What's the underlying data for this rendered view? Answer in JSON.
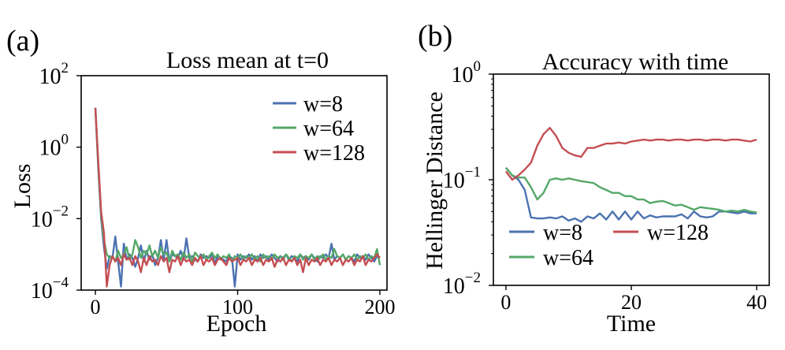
{
  "chart_data": [
    {
      "panel_label": "(a)",
      "type": "line",
      "title": "Loss mean at t=0",
      "xlabel": "Epoch",
      "ylabel": "Loss",
      "yscale": "log",
      "xlim": [
        -10,
        205
      ],
      "ylim_exp": [
        -4,
        2
      ],
      "xticks": [
        0,
        100,
        200
      ],
      "xtick_labels": [
        "0",
        "100",
        "200"
      ],
      "yticks_exp": [
        -4,
        -2,
        0,
        2
      ],
      "ytick_base": "10",
      "ytick_exps": [
        "−4",
        "−2",
        "0",
        "2"
      ],
      "legend_position": "upper-right",
      "series": [
        {
          "name": "w=8",
          "color": "#4c72b0",
          "x": [
            0,
            2,
            4,
            6,
            8,
            10,
            12,
            14,
            16,
            18,
            20,
            22,
            24,
            26,
            28,
            30,
            32,
            34,
            36,
            38,
            40,
            42,
            44,
            46,
            48,
            50,
            52,
            54,
            56,
            58,
            60,
            62,
            64,
            66,
            68,
            70,
            72,
            74,
            76,
            78,
            80,
            82,
            84,
            86,
            88,
            90,
            92,
            94,
            96,
            98,
            100,
            102,
            104,
            106,
            108,
            110,
            112,
            114,
            116,
            118,
            120,
            122,
            124,
            126,
            128,
            130,
            132,
            134,
            136,
            138,
            140,
            142,
            144,
            146,
            148,
            150,
            152,
            154,
            156,
            158,
            160,
            162,
            164,
            166,
            168,
            170,
            172,
            174,
            176,
            178,
            180,
            182,
            184,
            186,
            188,
            190,
            192,
            194,
            196,
            198,
            200
          ],
          "log10_y": [
            1.1,
            -0.6,
            -2.0,
            -2.8,
            -3.4,
            -3.05,
            -3.1,
            -2.5,
            -3.2,
            -3.9,
            -2.7,
            -3.15,
            -3.0,
            -3.1,
            -3.35,
            -3.1,
            -2.75,
            -3.2,
            -2.9,
            -3.15,
            -3.0,
            -3.3,
            -3.1,
            -2.6,
            -3.15,
            -2.6,
            -3.2,
            -3.0,
            -3.05,
            -3.1,
            -2.9,
            -3.15,
            -2.55,
            -3.1,
            -3.05,
            -3.15,
            -3.2,
            -3.0,
            -3.1,
            -3.05,
            -3.1,
            -3.0,
            -3.25,
            -3.05,
            -3.1,
            -3.15,
            -3.2,
            -3.05,
            -3.1,
            -3.9,
            -3.0,
            -3.15,
            -3.05,
            -3.1,
            -3.0,
            -3.15,
            -3.05,
            -3.2,
            -3.0,
            -3.1,
            -3.05,
            -3.15,
            -3.0,
            -3.1,
            -3.2,
            -3.05,
            -3.1,
            -3.0,
            -3.15,
            -3.05,
            -3.1,
            -3.2,
            -3.0,
            -3.1,
            -3.05,
            -3.15,
            -3.0,
            -3.1,
            -3.2,
            -3.05,
            -3.1,
            -3.0,
            -3.1,
            -2.7,
            -3.15,
            -3.05,
            -3.1,
            -3.0,
            -3.15,
            -3.05,
            -3.1,
            -3.2,
            -3.0,
            -3.1,
            -3.05,
            -3.15,
            -3.0,
            -3.1,
            -3.2,
            -3.05,
            -3.1
          ]
        },
        {
          "name": "w=64",
          "color": "#55a868",
          "x": [
            0,
            2,
            4,
            6,
            8,
            10,
            12,
            14,
            16,
            18,
            20,
            22,
            24,
            26,
            28,
            30,
            32,
            34,
            36,
            38,
            40,
            42,
            44,
            46,
            48,
            50,
            52,
            54,
            56,
            58,
            60,
            62,
            64,
            66,
            68,
            70,
            72,
            74,
            76,
            78,
            80,
            82,
            84,
            86,
            88,
            90,
            92,
            94,
            96,
            98,
            100,
            102,
            104,
            106,
            108,
            110,
            112,
            114,
            116,
            118,
            120,
            122,
            124,
            126,
            128,
            130,
            132,
            134,
            136,
            138,
            140,
            142,
            144,
            146,
            148,
            150,
            152,
            154,
            156,
            158,
            160,
            162,
            164,
            166,
            168,
            170,
            172,
            174,
            176,
            178,
            180,
            182,
            184,
            186,
            188,
            190,
            192,
            194,
            196,
            198,
            200
          ],
          "log10_y": [
            1.1,
            -0.5,
            -1.9,
            -2.6,
            -3.0,
            -3.1,
            -3.05,
            -3.2,
            -2.9,
            -3.1,
            -3.0,
            -2.8,
            -3.15,
            -3.0,
            -2.6,
            -2.8,
            -3.1,
            -2.9,
            -3.0,
            -2.75,
            -3.05,
            -2.9,
            -3.1,
            -2.8,
            -3.0,
            -2.95,
            -3.2,
            -2.9,
            -3.05,
            -3.0,
            -3.15,
            -2.95,
            -3.1,
            -3.0,
            -3.2,
            -2.95,
            -3.05,
            -3.1,
            -3.0,
            -3.15,
            -3.05,
            -2.95,
            -3.1,
            -3.0,
            -3.15,
            -3.05,
            -3.1,
            -3.0,
            -3.2,
            -3.05,
            -3.1,
            -3.0,
            -3.15,
            -3.05,
            -3.1,
            -3.0,
            -3.15,
            -3.05,
            -3.2,
            -3.0,
            -3.1,
            -3.05,
            -3.15,
            -3.0,
            -3.1,
            -3.05,
            -3.15,
            -3.0,
            -3.1,
            -3.2,
            -3.05,
            -3.1,
            -3.0,
            -3.15,
            -3.05,
            -3.1,
            -3.0,
            -3.15,
            -3.05,
            -3.1,
            -3.0,
            -3.15,
            -3.05,
            -3.1,
            -2.85,
            -3.05,
            -3.1,
            -3.0,
            -3.15,
            -3.05,
            -3.1,
            -3.0,
            -3.15,
            -3.05,
            -3.1,
            -3.0,
            -3.15,
            -3.05,
            -3.1,
            -2.85,
            -3.3
          ]
        },
        {
          "name": "w=128",
          "color": "#c44e52",
          "x": [
            0,
            2,
            4,
            6,
            8,
            10,
            12,
            14,
            16,
            18,
            20,
            22,
            24,
            26,
            28,
            30,
            32,
            34,
            36,
            38,
            40,
            42,
            44,
            46,
            48,
            50,
            52,
            54,
            56,
            58,
            60,
            62,
            64,
            66,
            68,
            70,
            72,
            74,
            76,
            78,
            80,
            82,
            84,
            86,
            88,
            90,
            92,
            94,
            96,
            98,
            100,
            102,
            104,
            106,
            108,
            110,
            112,
            114,
            116,
            118,
            120,
            122,
            124,
            126,
            128,
            130,
            132,
            134,
            136,
            138,
            140,
            142,
            144,
            146,
            148,
            150,
            152,
            154,
            156,
            158,
            160,
            162,
            164,
            166,
            168,
            170,
            172,
            174,
            176,
            178,
            180,
            182,
            184,
            186,
            188,
            190,
            192,
            194,
            196,
            198,
            200
          ],
          "log10_y": [
            1.1,
            -0.4,
            -1.8,
            -2.4,
            -3.9,
            -3.3,
            -3.05,
            -3.2,
            -3.1,
            -3.3,
            -3.0,
            -3.15,
            -3.1,
            -3.3,
            -3.05,
            -3.2,
            -3.5,
            -3.1,
            -3.3,
            -3.05,
            -3.2,
            -3.15,
            -3.3,
            -3.05,
            -3.2,
            -3.1,
            -3.5,
            -3.15,
            -3.2,
            -3.05,
            -3.3,
            -3.1,
            -3.2,
            -3.15,
            -3.3,
            -3.1,
            -3.2,
            -3.05,
            -3.3,
            -3.15,
            -3.2,
            -3.1,
            -3.3,
            -3.15,
            -3.1,
            -3.2,
            -3.3,
            -3.1,
            -3.2,
            -3.15,
            -3.1,
            -3.3,
            -3.15,
            -3.2,
            -3.1,
            -3.3,
            -3.15,
            -3.2,
            -3.1,
            -3.3,
            -3.15,
            -3.2,
            -3.1,
            -3.35,
            -3.15,
            -3.2,
            -3.1,
            -3.3,
            -3.15,
            -3.2,
            -3.1,
            -3.3,
            -3.15,
            -3.5,
            -3.1,
            -3.3,
            -3.15,
            -3.2,
            -3.1,
            -3.3,
            -3.15,
            -3.2,
            -3.1,
            -3.3,
            -3.15,
            -3.2,
            -3.1,
            -3.3,
            -3.15,
            -3.2,
            -3.1,
            -3.3,
            -3.15,
            -3.2,
            -3.05,
            -3.3,
            -3.15,
            -3.2,
            -3.1,
            -3.0,
            -3.1
          ]
        }
      ]
    },
    {
      "panel_label": "(b)",
      "type": "line",
      "title": "Accuracy with time",
      "xlabel": "Time",
      "ylabel": "Hellinger Distance",
      "yscale": "log",
      "xlim": [
        -2,
        42
      ],
      "ylim_exp": [
        -2,
        0
      ],
      "xticks": [
        0,
        20,
        40
      ],
      "xtick_labels": [
        "0",
        "20",
        "40"
      ],
      "yticks_exp": [
        -2,
        -1,
        0
      ],
      "ytick_base": "10",
      "ytick_exps": [
        "−2",
        "−1",
        "0"
      ],
      "legend_position": "lower-center",
      "series": [
        {
          "name": "w=8",
          "color": "#4c72b0",
          "x": [
            0,
            1,
            2,
            3,
            4,
            5,
            6,
            7,
            8,
            9,
            10,
            11,
            12,
            13,
            14,
            15,
            16,
            17,
            18,
            19,
            20,
            21,
            22,
            23,
            24,
            25,
            26,
            27,
            28,
            29,
            30,
            31,
            32,
            33,
            34,
            35,
            36,
            37,
            38,
            39,
            40
          ],
          "y": [
            0.13,
            0.11,
            0.1,
            0.08,
            0.044,
            0.043,
            0.043,
            0.044,
            0.043,
            0.045,
            0.041,
            0.043,
            0.04,
            0.045,
            0.043,
            0.048,
            0.042,
            0.05,
            0.042,
            0.05,
            0.042,
            0.05,
            0.043,
            0.046,
            0.044,
            0.045,
            0.045,
            0.045,
            0.047,
            0.043,
            0.05,
            0.045,
            0.044,
            0.045,
            0.05,
            0.05,
            0.049,
            0.048,
            0.05,
            0.048,
            0.048
          ]
        },
        {
          "name": "w=64",
          "color": "#55a868",
          "x": [
            0,
            1,
            2,
            3,
            4,
            5,
            6,
            7,
            8,
            9,
            10,
            11,
            12,
            13,
            14,
            15,
            16,
            17,
            18,
            19,
            20,
            21,
            22,
            23,
            24,
            25,
            26,
            27,
            28,
            29,
            30,
            31,
            32,
            33,
            34,
            35,
            36,
            37,
            38,
            39,
            40
          ],
          "y": [
            0.13,
            0.11,
            0.105,
            0.105,
            0.085,
            0.065,
            0.075,
            0.1,
            0.103,
            0.1,
            0.103,
            0.1,
            0.097,
            0.095,
            0.093,
            0.085,
            0.08,
            0.075,
            0.075,
            0.07,
            0.07,
            0.065,
            0.065,
            0.06,
            0.062,
            0.063,
            0.06,
            0.057,
            0.058,
            0.055,
            0.052,
            0.055,
            0.054,
            0.053,
            0.052,
            0.05,
            0.051,
            0.05,
            0.052,
            0.05,
            0.049
          ]
        },
        {
          "name": "w=128",
          "color": "#c44e52",
          "x": [
            0,
            1,
            2,
            3,
            4,
            5,
            6,
            7,
            8,
            9,
            10,
            11,
            12,
            13,
            14,
            15,
            16,
            17,
            18,
            19,
            20,
            21,
            22,
            23,
            24,
            25,
            26,
            27,
            28,
            29,
            30,
            31,
            32,
            33,
            34,
            35,
            36,
            37,
            38,
            39,
            40
          ],
          "y": [
            0.12,
            0.1,
            0.11,
            0.125,
            0.145,
            0.21,
            0.27,
            0.31,
            0.26,
            0.2,
            0.18,
            0.17,
            0.165,
            0.2,
            0.2,
            0.21,
            0.22,
            0.22,
            0.225,
            0.22,
            0.23,
            0.235,
            0.24,
            0.235,
            0.24,
            0.24,
            0.235,
            0.24,
            0.24,
            0.235,
            0.24,
            0.24,
            0.235,
            0.24,
            0.24,
            0.235,
            0.24,
            0.24,
            0.235,
            0.23,
            0.24
          ]
        }
      ]
    }
  ]
}
